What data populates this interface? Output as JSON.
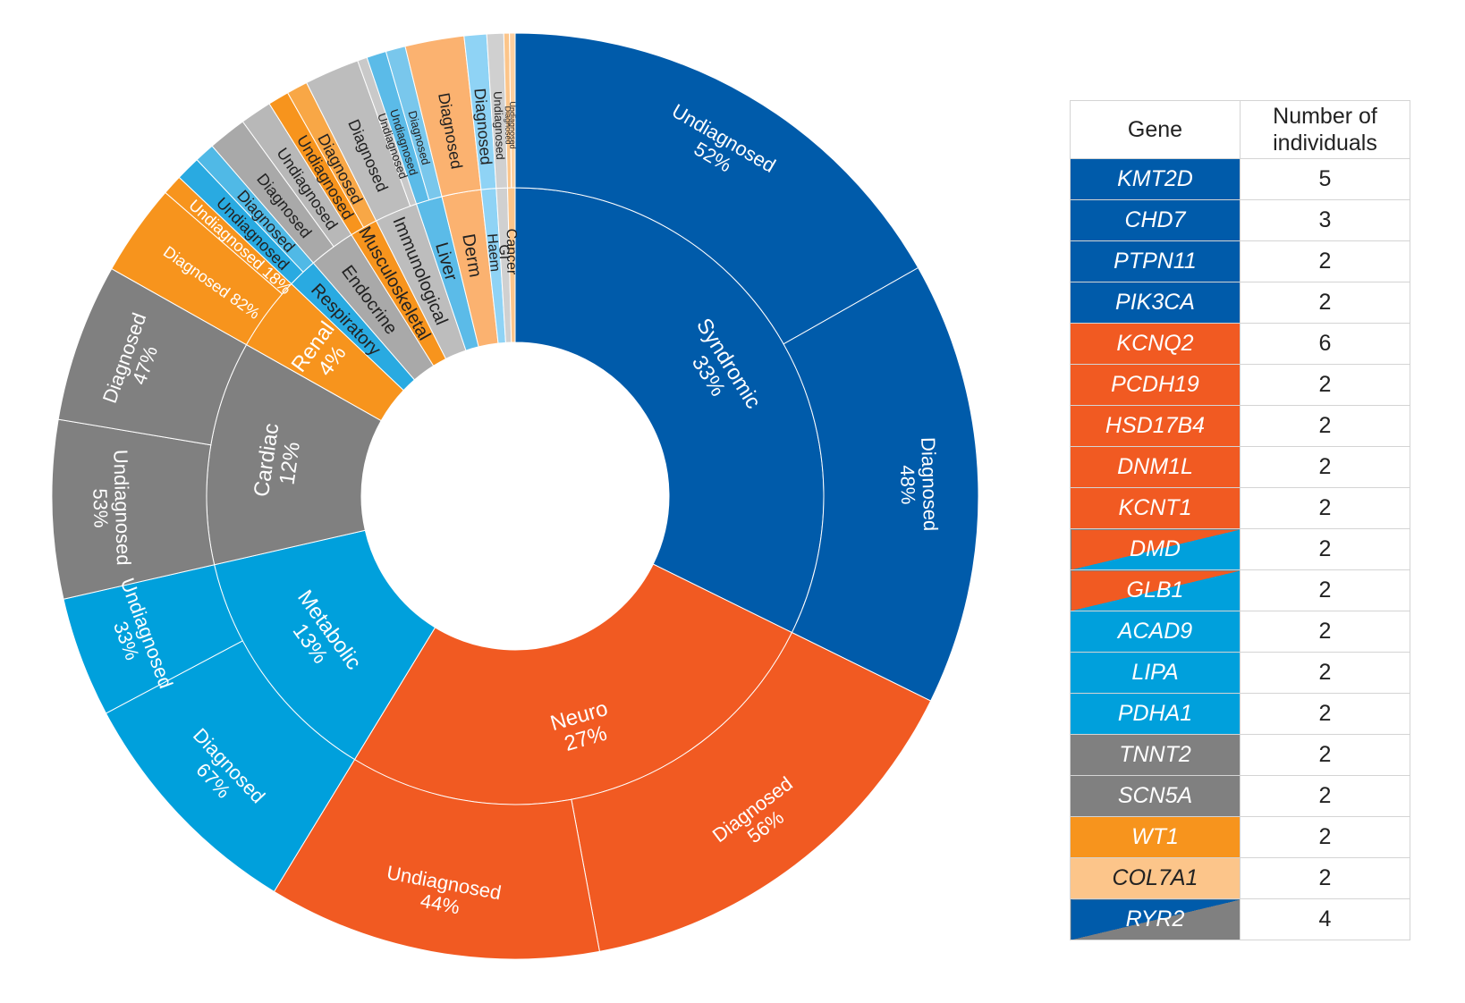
{
  "chart_data": {
    "type": "sunburst",
    "colors": {
      "syndromic": "#005baa",
      "neuro": "#f15a22",
      "metabolic": "#00a0dc",
      "cardiac": "#808080",
      "renal": "#f7941d",
      "respiratory": "#29aae1",
      "endocrine": "#a9a9a9",
      "musculoskeletal": "#f7941d",
      "immunological": "#bdbdbd",
      "liver": "#5bbbe8",
      "derm": "#fbb270",
      "haem": "#8fd3f5",
      "gi": "#d0d0d0",
      "cancer": "#fcc58a"
    },
    "categories": [
      {
        "key": "syndromic",
        "label": "Syndromic",
        "percent": "33%",
        "value": 33,
        "children": [
          {
            "label": "Undiagnosed",
            "percent": "52%",
            "value": 52
          },
          {
            "label": "Diagnosed",
            "percent": "48%",
            "value": 48
          }
        ]
      },
      {
        "key": "neuro",
        "label": "Neuro",
        "percent": "27%",
        "value": 27,
        "children": [
          {
            "label": "Diagnosed",
            "percent": "56%",
            "value": 56
          },
          {
            "label": "Undiagnosed",
            "percent": "44%",
            "value": 44
          }
        ]
      },
      {
        "key": "metabolic",
        "label": "Metabolic",
        "percent": "13%",
        "value": 13,
        "children": [
          {
            "label": "Diagnosed",
            "percent": "67%",
            "value": 67
          },
          {
            "label": "Undiagnosed",
            "percent": "33%",
            "value": 33
          }
        ]
      },
      {
        "key": "cardiac",
        "label": "Cardiac",
        "percent": "12%",
        "value": 12,
        "children": [
          {
            "label": "Undiagnosed",
            "percent": "53%",
            "value": 53
          },
          {
            "label": "Diagnosed",
            "percent": "47%",
            "value": 47
          }
        ]
      },
      {
        "key": "renal",
        "label": "Renal",
        "percent": "4%",
        "value": 4,
        "children": [
          {
            "label": "Diagnosed",
            "percent": "82%",
            "value": 82
          },
          {
            "label": "Undiagnosed",
            "percent": "18%",
            "value": 18
          }
        ]
      },
      {
        "key": "respiratory",
        "label": "Respiratory",
        "percent": "",
        "value": 1.6,
        "children": [
          {
            "label": "Undiagnosed",
            "percent": "",
            "value": 55
          },
          {
            "label": "Diagnosed",
            "percent": "",
            "value": 45
          }
        ]
      },
      {
        "key": "endocrine",
        "label": "Endocrine",
        "percent": "",
        "value": 2.5,
        "children": [
          {
            "label": "Diagnosed",
            "percent": "",
            "value": 55
          },
          {
            "label": "Undiagnosed",
            "percent": "",
            "value": 45
          }
        ]
      },
      {
        "key": "musculoskeletal",
        "label": "Musculoskeletal",
        "percent": "",
        "value": 1.5,
        "children": [
          {
            "label": "Undiagnosed",
            "percent": "",
            "value": 50
          },
          {
            "label": "Diagnosed",
            "percent": "",
            "value": 50
          }
        ]
      },
      {
        "key": "immunological",
        "label": "Immunological",
        "percent": "",
        "value": 2.3,
        "children": [
          {
            "label": "Diagnosed",
            "percent": "",
            "value": 85
          },
          {
            "label": "Undiagnosed",
            "percent": "",
            "value": 15
          }
        ]
      },
      {
        "key": "liver",
        "label": "Liver",
        "percent": "",
        "value": 1.4,
        "children": [
          {
            "label": "Undiagnosed",
            "percent": "",
            "value": 50
          },
          {
            "label": "Diagnosed",
            "percent": "",
            "value": 50
          }
        ]
      },
      {
        "key": "derm",
        "label": "Derm",
        "percent": "",
        "value": 2.1,
        "children": [
          {
            "label": "Diagnosed",
            "percent": "",
            "value": 100
          }
        ]
      },
      {
        "key": "haem",
        "label": "Haem",
        "percent": "",
        "value": 0.8,
        "children": [
          {
            "label": "Diagnosed",
            "percent": "",
            "value": 100
          }
        ]
      },
      {
        "key": "gi",
        "label": "GI",
        "percent": "",
        "value": 0.6,
        "children": [
          {
            "label": "Undiagnosed",
            "percent": "",
            "value": 100
          }
        ]
      },
      {
        "key": "cancer",
        "label": "Cancer",
        "percent": "",
        "value": 0.4,
        "children": [
          {
            "label": "Diagnosed",
            "percent": "",
            "value": 50
          },
          {
            "label": "Undiagnosed",
            "percent": "",
            "value": 50
          }
        ]
      }
    ]
  },
  "table": {
    "header_gene": "Gene",
    "header_number": "Number of individuals",
    "rows": [
      {
        "gene": "KMT2D",
        "count": "5",
        "color": "#005baa",
        "text_color": "#ffffff"
      },
      {
        "gene": "CHD7",
        "count": "3",
        "color": "#005baa",
        "text_color": "#ffffff"
      },
      {
        "gene": "PTPN11",
        "count": "2",
        "color": "#005baa",
        "text_color": "#ffffff"
      },
      {
        "gene": "PIK3CA",
        "count": "2",
        "color": "#005baa",
        "text_color": "#ffffff"
      },
      {
        "gene": "KCNQ2",
        "count": "6",
        "color": "#f15a22",
        "text_color": "#ffffff"
      },
      {
        "gene": "PCDH19",
        "count": "2",
        "color": "#f15a22",
        "text_color": "#ffffff"
      },
      {
        "gene": "HSD17B4",
        "count": "2",
        "color": "#f15a22",
        "text_color": "#ffffff"
      },
      {
        "gene": "DNM1L",
        "count": "2",
        "color": "#f15a22",
        "text_color": "#ffffff"
      },
      {
        "gene": "KCNT1",
        "count": "2",
        "color": "#f15a22",
        "text_color": "#ffffff"
      },
      {
        "gene": "DMD",
        "count": "2",
        "color": "#f15a22",
        "color2": "#00a0dc",
        "text_color": "#ffffff"
      },
      {
        "gene": "GLB1",
        "count": "2",
        "color": "#f15a22",
        "color2": "#00a0dc",
        "text_color": "#ffffff"
      },
      {
        "gene": "ACAD9",
        "count": "2",
        "color": "#00a0dc",
        "text_color": "#ffffff"
      },
      {
        "gene": "LIPA",
        "count": "2",
        "color": "#00a0dc",
        "text_color": "#ffffff"
      },
      {
        "gene": "PDHA1",
        "count": "2",
        "color": "#00a0dc",
        "text_color": "#ffffff"
      },
      {
        "gene": "TNNT2",
        "count": "2",
        "color": "#808080",
        "text_color": "#ffffff"
      },
      {
        "gene": "SCN5A",
        "count": "2",
        "color": "#808080",
        "text_color": "#ffffff"
      },
      {
        "gene": "WT1",
        "count": "2",
        "color": "#f7941d",
        "text_color": "#ffffff"
      },
      {
        "gene": "COL7A1",
        "count": "2",
        "color": "#fcc58a",
        "text_color": "#222222"
      },
      {
        "gene": "RYR2",
        "count": "4",
        "color": "#005baa",
        "color2": "#808080",
        "text_color": "#ffffff"
      }
    ]
  }
}
